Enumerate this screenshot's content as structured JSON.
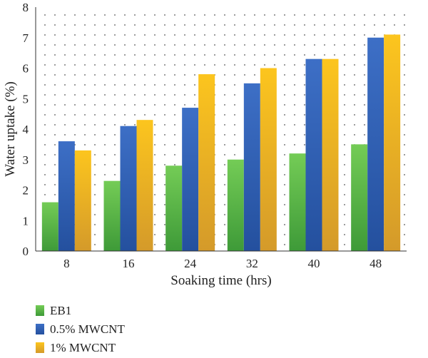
{
  "chart_data": {
    "type": "bar",
    "title": "",
    "xlabel": "Soaking time (hrs)",
    "ylabel": "Water uptake (%)",
    "categories": [
      "8",
      "16",
      "24",
      "32",
      "40",
      "48"
    ],
    "ylim": [
      0,
      8
    ],
    "yticks": [
      "0",
      "1",
      "2",
      "3",
      "4",
      "5",
      "6",
      "7",
      "8"
    ],
    "grid": "dotted",
    "legend_position": "bottom-left",
    "series": [
      {
        "name": "EB1",
        "color": "#5ab848",
        "values": [
          1.6,
          2.3,
          2.8,
          3.0,
          3.2,
          3.5
        ]
      },
      {
        "name": "0.5% MWCNT",
        "color": "#2f5fb4",
        "values": [
          3.6,
          4.1,
          4.7,
          5.5,
          6.3,
          7.0
        ]
      },
      {
        "name": "1% MWCNT",
        "color": "#f4b41c",
        "values": [
          3.3,
          4.3,
          5.8,
          6.0,
          6.3,
          7.1
        ]
      }
    ]
  }
}
